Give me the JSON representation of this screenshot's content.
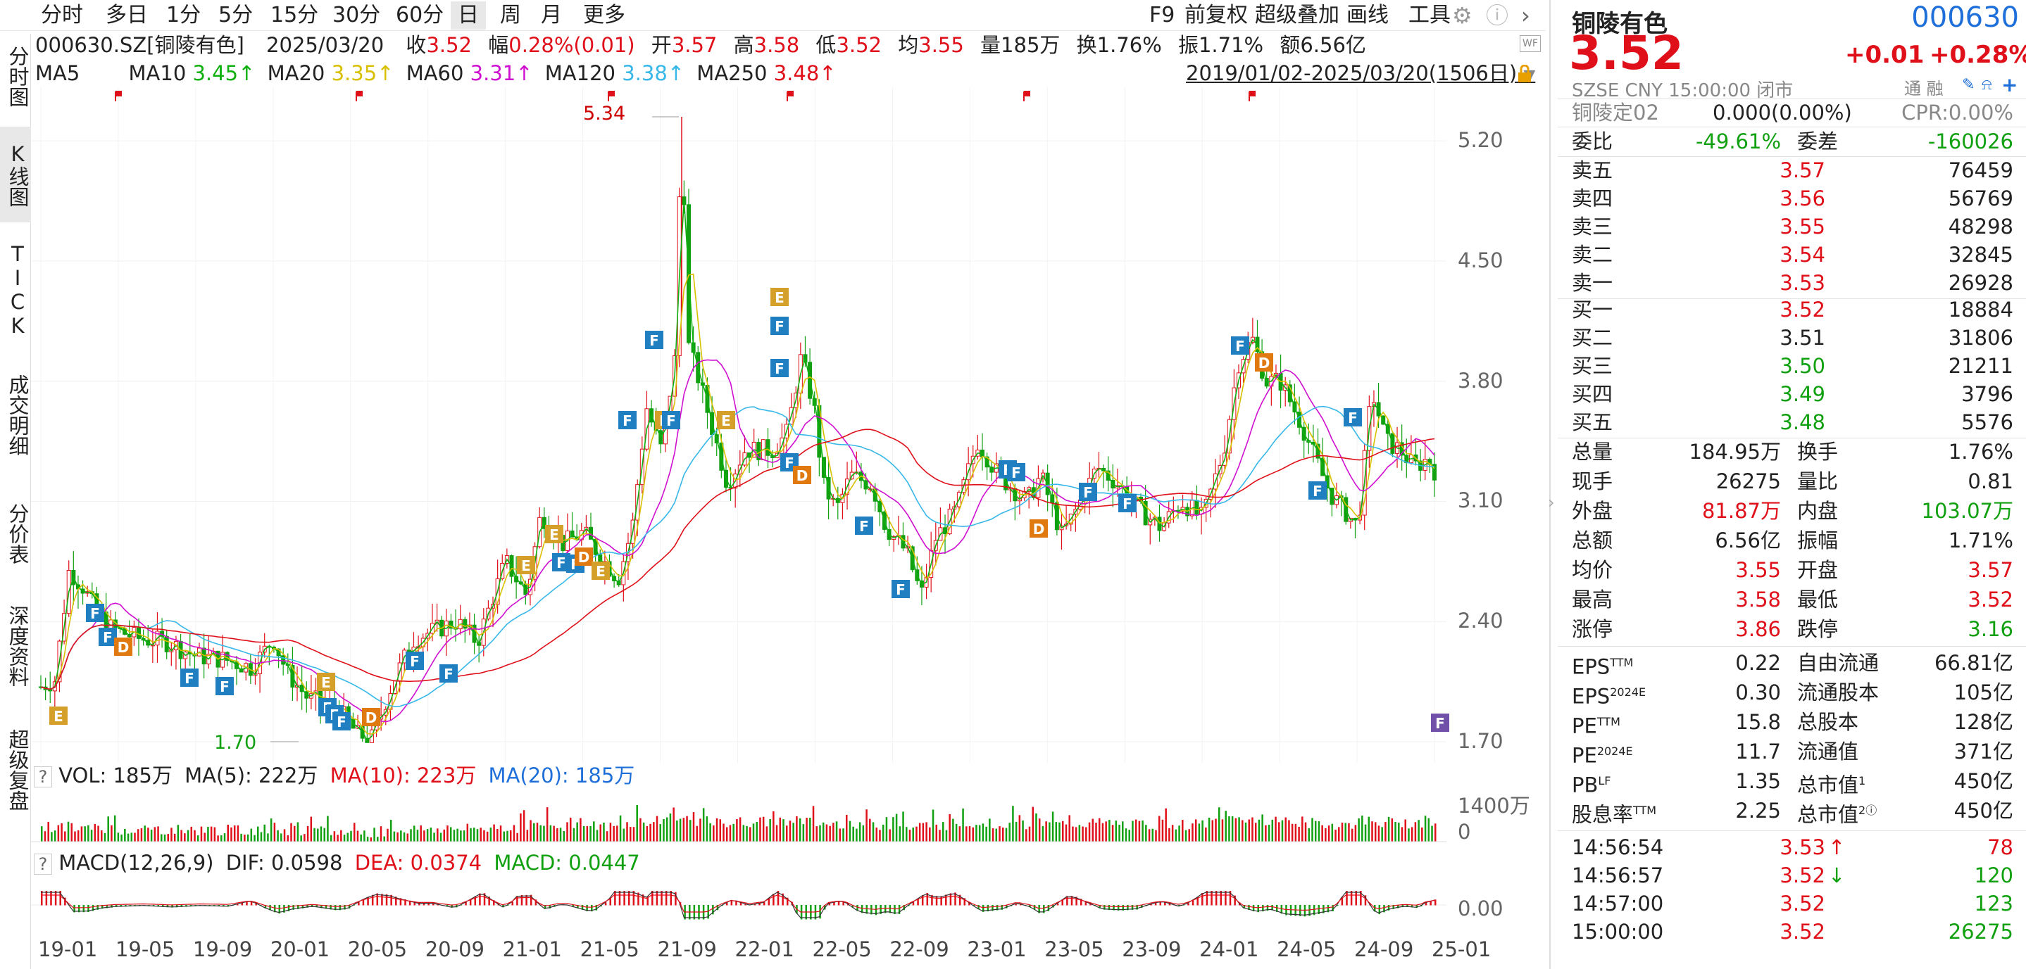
{
  "periods": [
    "分时",
    "多日",
    "1分",
    "5分",
    "15分",
    "30分",
    "60分",
    "日",
    "周",
    "月",
    "更多"
  ],
  "active_period": "日",
  "toolbar": [
    "F9",
    "前复权",
    "超级叠加",
    "画线",
    "工具"
  ],
  "leftnav": [
    "分时图",
    "K线图",
    "TICK",
    "成交明细",
    "分价表",
    "深度资料",
    "超级复盘"
  ],
  "info": {
    "code": "000630.SZ[铜陵有色]",
    "date": "2025/03/20",
    "close_label": "收",
    "close": "3.52",
    "range_label": "幅",
    "range": "0.28%(0.01)",
    "open_label": "开",
    "open": "3.57",
    "high_label": "高",
    "high": "3.58",
    "low_label": "低",
    "low": "3.52",
    "avg_label": "均",
    "avg": "3.55",
    "vol_label": "量185万",
    "turn_label": "换1.76%",
    "amp_label": "振1.71%",
    "amt_label": "额6.56亿"
  },
  "ma": {
    "ma5": "MA5",
    "ma10": "MA10",
    "ma10_val": "3.45↑",
    "ma20": "MA20",
    "ma20_val": "3.35↑",
    "ma60": "MA60",
    "ma60_val": "3.31↑",
    "ma120": "MA120",
    "ma120_val": "3.38↑",
    "ma250": "MA250",
    "ma250_val": "3.48↑",
    "range_text": "2019/01/02-2025/03/20(1506日)"
  },
  "colors": {
    "ma10": "#10b010",
    "ma20": "#d8c000",
    "ma60": "#d010d0",
    "ma120": "#38b8e8",
    "ma250": "#e0101a",
    "up": "#e0101a",
    "down": "#10a010"
  },
  "kline_axis": [
    "5.20",
    "4.50",
    "3.80",
    "3.10",
    "2.40",
    "1.70"
  ],
  "x_axis": [
    "19-01",
    "19-05",
    "19-09",
    "20-01",
    "20-05",
    "20-09",
    "21-01",
    "21-05",
    "21-09",
    "22-01",
    "22-05",
    "22-09",
    "23-01",
    "23-05",
    "23-09",
    "24-01",
    "24-05",
    "24-09",
    "25-01"
  ],
  "labels": {
    "high": "5.34",
    "low": "1.70"
  },
  "vol": {
    "q": "?",
    "title": "VOL: 185万",
    "ma5": "MA(5): 222万",
    "ma10": "MA(10): 223万",
    "ma20": "MA(20): 185万",
    "axis_top": "1400万",
    "axis_zero": "0"
  },
  "macd": {
    "q": "?",
    "title": "MACD(12,26,9)",
    "dif": "DIF: 0.0598",
    "dea": "DEA: 0.0374",
    "macd": "MACD: 0.0447",
    "axis_zero": "0.00"
  },
  "right": {
    "name": "铜陵有色",
    "code": "000630",
    "price": "3.52",
    "change": "+0.01",
    "change_pct": "+0.28%",
    "market": "SZSE  CNY  15:00:00  闭市",
    "icons_text": "通 融",
    "bond_name": "铜陵定02",
    "bond_val": "0.000(0.00%)",
    "bond_cpr": "CPR:0.00%",
    "weibi_label": "委比",
    "weibi": "-49.61%",
    "weicha_label": "委差",
    "weicha": "-160026",
    "asks": [
      {
        "label": "卖五",
        "price": "3.57",
        "vol": "76459",
        "color": "#e0101a"
      },
      {
        "label": "卖四",
        "price": "3.56",
        "vol": "56769",
        "color": "#e0101a"
      },
      {
        "label": "卖三",
        "price": "3.55",
        "vol": "48298",
        "color": "#e0101a"
      },
      {
        "label": "卖二",
        "price": "3.54",
        "vol": "32845",
        "color": "#e0101a"
      },
      {
        "label": "卖一",
        "price": "3.53",
        "vol": "26928",
        "color": "#e0101a"
      }
    ],
    "bids": [
      {
        "label": "买一",
        "price": "3.52",
        "vol": "18884",
        "color": "#e0101a"
      },
      {
        "label": "买二",
        "price": "3.51",
        "vol": "31806",
        "color": "#222222"
      },
      {
        "label": "买三",
        "price": "3.50",
        "vol": "21211",
        "color": "#10a010"
      },
      {
        "label": "买四",
        "price": "3.49",
        "vol": "3796",
        "color": "#10a010"
      },
      {
        "label": "买五",
        "price": "3.48",
        "vol": "5576",
        "color": "#10a010"
      }
    ],
    "stats1": [
      {
        "l": "总量",
        "lv": "184.95万",
        "lc": "#222",
        "r": "换手",
        "rv": "1.76%",
        "rc": "#222"
      },
      {
        "l": "现手",
        "lv": "26275",
        "lc": "#222",
        "r": "量比",
        "rv": "0.81",
        "rc": "#222"
      },
      {
        "l": "外盘",
        "lv": "81.87万",
        "lc": "#e0101a",
        "r": "内盘",
        "rv": "103.07万",
        "rc": "#10a010"
      },
      {
        "l": "总额",
        "lv": "6.56亿",
        "lc": "#222",
        "r": "振幅",
        "rv": "1.71%",
        "rc": "#222"
      },
      {
        "l": "均价",
        "lv": "3.55",
        "lc": "#e0101a",
        "r": "开盘",
        "rv": "3.57",
        "rc": "#e0101a"
      },
      {
        "l": "最高",
        "lv": "3.58",
        "lc": "#e0101a",
        "r": "最低",
        "rv": "3.52",
        "rc": "#e0101a"
      },
      {
        "l": "涨停",
        "lv": "3.86",
        "lc": "#e0101a",
        "r": "跌停",
        "rv": "3.16",
        "rc": "#10a010"
      }
    ],
    "stats2": [
      {
        "l": "EPS",
        "sup": "TTM",
        "lv": "0.22",
        "r": "自由流通",
        "rsup": "",
        "rv": "66.81亿"
      },
      {
        "l": "EPS",
        "sup": "2024E",
        "lv": "0.30",
        "r": "流通股本",
        "rsup": "",
        "rv": "105亿"
      },
      {
        "l": "PE",
        "sup": "TTM",
        "lv": "15.8",
        "r": "总股本",
        "rsup": "",
        "rv": "128亿"
      },
      {
        "l": "PE",
        "sup": "2024E",
        "lv": "11.7",
        "r": "流通值",
        "rsup": "",
        "rv": "371亿"
      },
      {
        "l": "PB",
        "sup": "LF",
        "lv": "1.35",
        "r": "总市值",
        "rsup": "1",
        "rv": "450亿"
      },
      {
        "l": "股息率",
        "sup": "TTM",
        "lv": "2.25",
        "r": "总市值",
        "rsup": "2ⓘ",
        "rv": "450亿"
      }
    ],
    "ticks": [
      {
        "time": "14:56:54",
        "price": "3.53",
        "arrow": "↑",
        "arrow_color": "#e0101a",
        "vol": "78",
        "vol_color": "#e0101a"
      },
      {
        "time": "14:56:57",
        "price": "3.52",
        "arrow": "↓",
        "arrow_color": "#10a010",
        "vol": "120",
        "vol_color": "#10a010"
      },
      {
        "time": "14:57:00",
        "price": "3.52",
        "arrow": "",
        "arrow_color": "#e0101a",
        "vol": "123",
        "vol_color": "#10a010"
      },
      {
        "time": "15:00:00",
        "price": "3.52",
        "arrow": "",
        "arrow_color": "#e0101a",
        "vol": "26275",
        "vol_color": "#10a010"
      }
    ]
  },
  "event_tags": [
    {
      "t": "E",
      "c": "#d4a02a"
    },
    {
      "t": "F",
      "c": "#1f7fc0"
    },
    {
      "t": "D",
      "c": "#e07a10"
    },
    {
      "t": "F",
      "c": "#7050a8"
    }
  ]
}
